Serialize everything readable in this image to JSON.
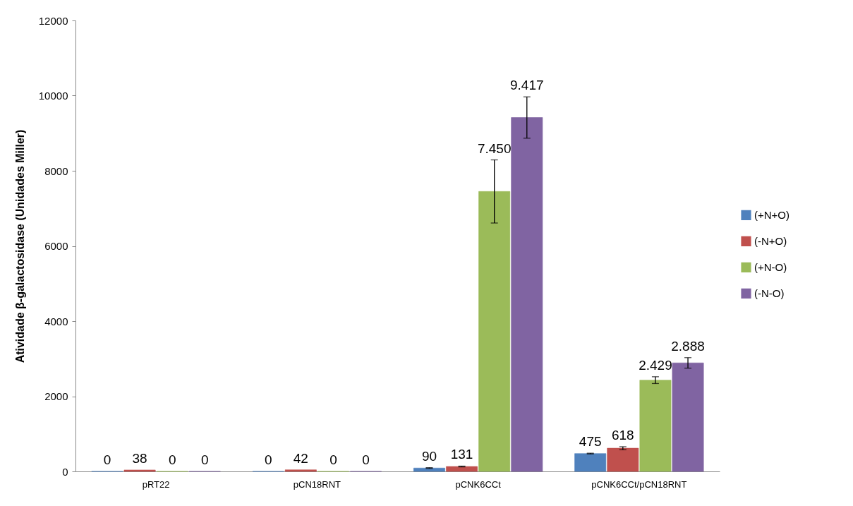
{
  "chart_data": {
    "type": "bar",
    "ylabel": "Atividade β-galactosidase (Unidades Miller)",
    "categories": [
      "pRT22",
      "pCN18RNT",
      "pCNK6CCt",
      "pCNK6CCt/pCN18RNT"
    ],
    "series": [
      {
        "name": "(+N+O)",
        "color": "#4f81bd",
        "values": [
          0,
          0,
          90,
          475
        ],
        "errors": [
          null,
          null,
          10,
          10
        ],
        "value_labels": [
          "0",
          "0",
          "90",
          "475"
        ]
      },
      {
        "name": "(-N+O)",
        "color": "#c0504d",
        "values": [
          38,
          42,
          131,
          618
        ],
        "errors": [
          null,
          null,
          10,
          40
        ],
        "value_labels": [
          "38",
          "42",
          "131",
          "618"
        ]
      },
      {
        "name": "(+N-O)",
        "color": "#9bbb59",
        "values": [
          0,
          0,
          7450,
          2429
        ],
        "errors": [
          null,
          null,
          840,
          90
        ],
        "value_labels": [
          "0",
          "0",
          "7.450",
          "2.429"
        ]
      },
      {
        "name": "(-N-O)",
        "color": "#8064a2",
        "values": [
          0,
          0,
          9417,
          2888
        ],
        "errors": [
          null,
          null,
          550,
          140
        ],
        "value_labels": [
          "0",
          "0",
          "9.417",
          "2.888"
        ]
      }
    ],
    "ylim": [
      0,
      12000
    ],
    "yticks": [
      0,
      2000,
      4000,
      6000,
      8000,
      10000,
      12000
    ],
    "grid": false,
    "legend": "right"
  }
}
